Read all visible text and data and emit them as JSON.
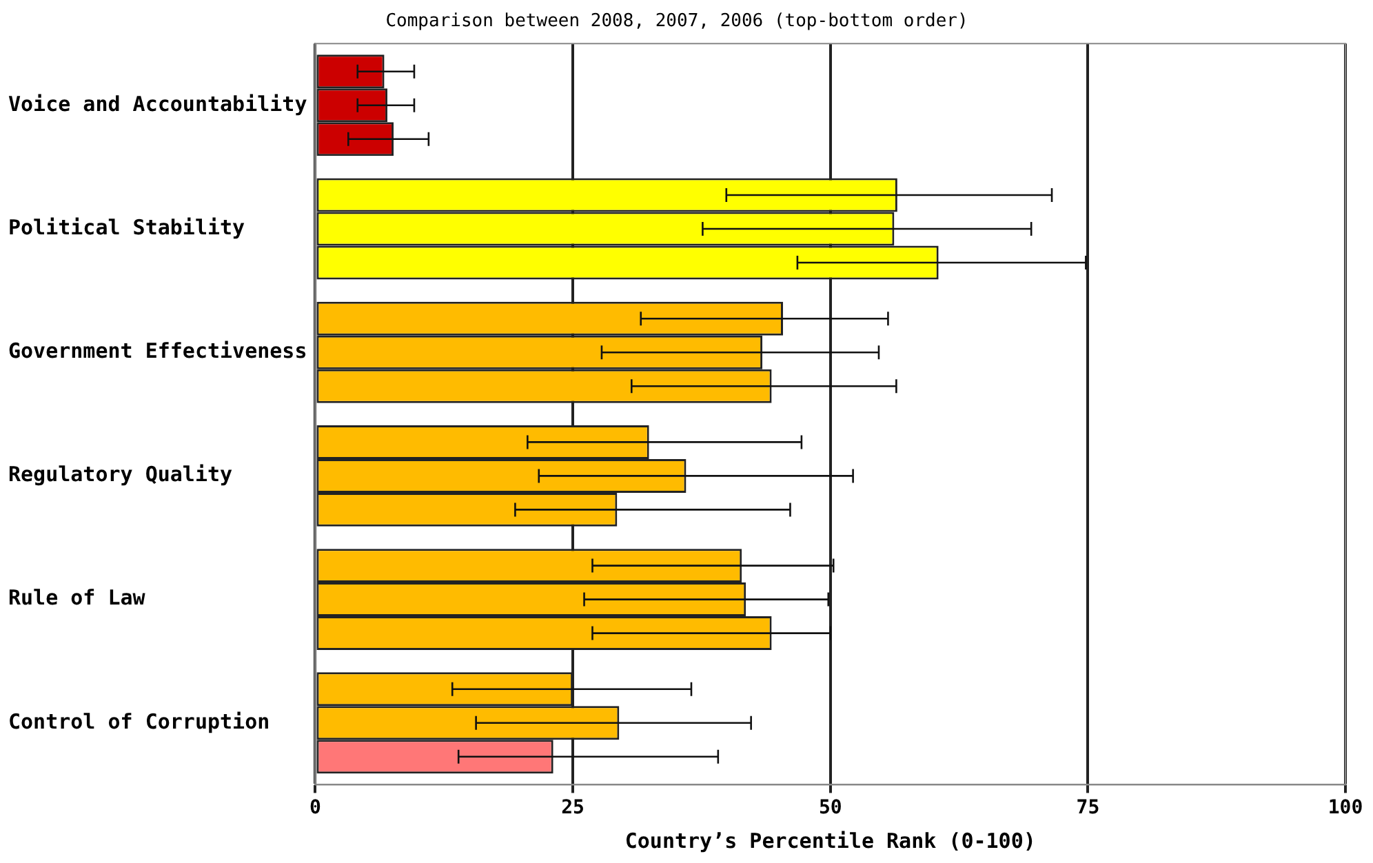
{
  "chart_data": {
    "type": "bar",
    "orientation": "horizontal",
    "title": "Comparison between 2008, 2007, 2006 (top-bottom order)",
    "xlabel": "Country’s Percentile Rank (0-100)",
    "categories": [
      "Voice and Accountability",
      "Political Stability",
      "Government Effectiveness",
      "Regulatory Quality",
      "Rule of Law",
      "Control of Corruption"
    ],
    "series": [
      {
        "colors": [
          "#cc0000",
          "#ffff00",
          "#ffbb00",
          "#ffbb00",
          "#ffbb00",
          "#ffbb00"
        ],
        "values": [
          6.7,
          56.5,
          45.4,
          32.4,
          41.4,
          25
        ],
        "errors": [
          [
            4.1,
            9.6
          ],
          [
            39.9,
            71.5
          ],
          [
            31.6,
            55.6
          ],
          [
            20.6,
            47.2
          ],
          [
            26.9,
            50.3
          ],
          [
            13.3,
            36.5
          ]
        ]
      },
      {
        "colors": [
          "#cc0000",
          "#ffff00",
          "#ffbb00",
          "#ffbb00",
          "#ffbb00",
          "#ffbb00"
        ],
        "values": [
          7.0,
          56.2,
          43.4,
          36.0,
          41.8,
          29.5
        ],
        "errors": [
          [
            4.1,
            9.6
          ],
          [
            37.6,
            69.5
          ],
          [
            27.8,
            54.7
          ],
          [
            21.7,
            52.2
          ],
          [
            26.1,
            49.8
          ],
          [
            15.6,
            42.3
          ]
        ]
      },
      {
        "colors": [
          "#cc0000",
          "#ffff00",
          "#ffbb00",
          "#ffbb00",
          "#ffbb00",
          "#ff7777"
        ],
        "values": [
          7.6,
          60.5,
          44.3,
          29.3,
          44.3,
          23.1
        ],
        "errors": [
          [
            3.2,
            11.0
          ],
          [
            46.8,
            74.8
          ],
          [
            30.7,
            56.4
          ],
          [
            19.4,
            46.1
          ],
          [
            26.9,
            50
          ],
          [
            13.9,
            39.1
          ]
        ]
      }
    ],
    "xlim": [
      0,
      100
    ],
    "xticks": [
      0,
      25,
      50,
      75,
      100
    ],
    "grid": "x",
    "legend": false
  }
}
